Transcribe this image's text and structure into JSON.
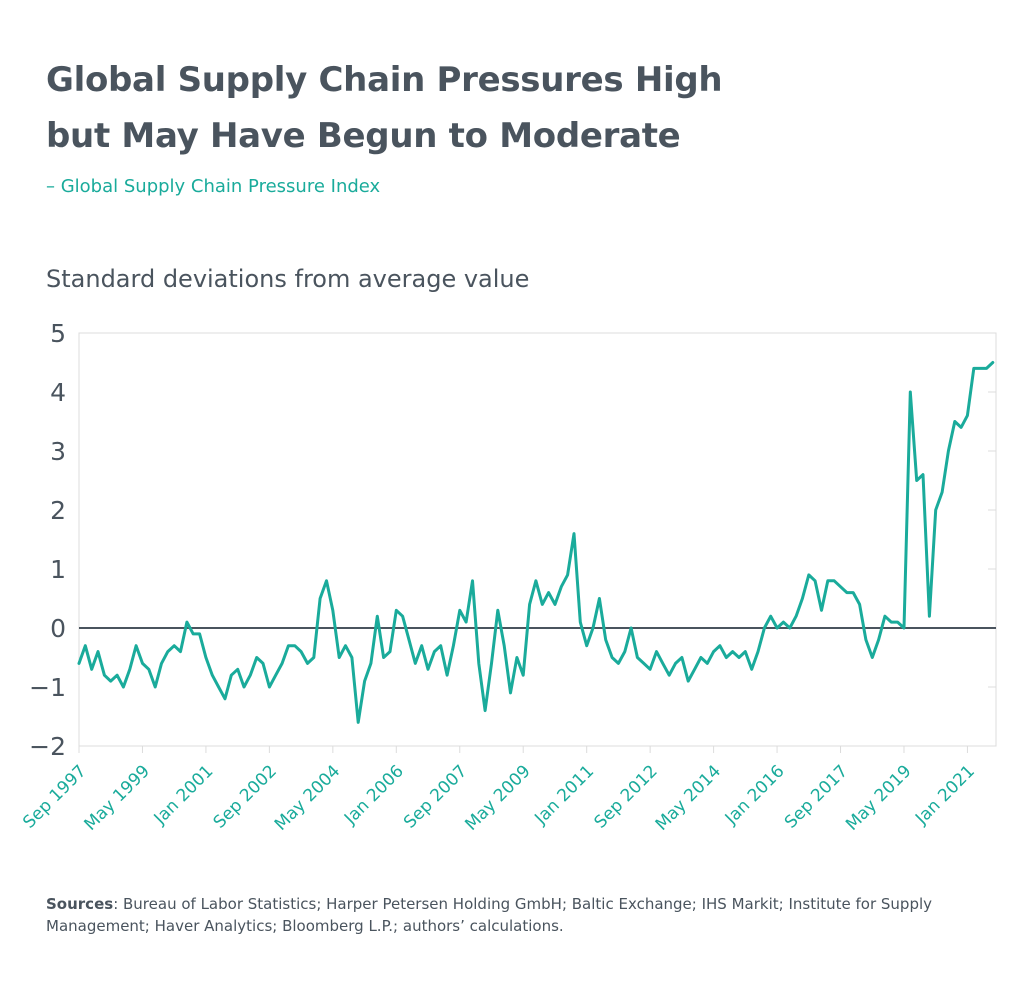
{
  "title_line1": "Global Supply Chain Pressures High",
  "title_line2": "but May Have Begun to Moderate",
  "legend_label": "– Global Supply Chain Pressure Index",
  "sources_label": "Sources",
  "sources_text": ": Bureau of Labor Statistics; Harper Petersen Holding GmbH; Baltic Exchange; IHS Markit; Institute for Supply Management; Haver Analytics; Bloomberg L.P.; authors’ calculations.",
  "colors": {
    "line": "#1aab9b",
    "text": "#4a545e",
    "frame": "#dcdcdc",
    "zero": "#4a545e"
  },
  "chart_data": {
    "type": "line",
    "title": "Global Supply Chain Pressures High but May Have Begun to Moderate",
    "ylabel": "Standard deviations from average value",
    "xlabel": "",
    "ylim": [
      -2,
      5
    ],
    "yticks": [
      5,
      4,
      3,
      2,
      1,
      0,
      -1,
      -2
    ],
    "ytick_labels": [
      "5",
      "4",
      "3",
      "2",
      "1",
      "0",
      "−1",
      "−2"
    ],
    "xlim": [
      "1997-09",
      "2021-10"
    ],
    "xticks": [
      "1997-09",
      "1999-05",
      "2001-01",
      "2002-09",
      "2004-05",
      "2006-01",
      "2007-09",
      "2009-05",
      "2011-01",
      "2012-09",
      "2014-05",
      "2016-01",
      "2017-09",
      "2019-05",
      "2021-01"
    ],
    "xtick_labels": [
      "Sep 1997",
      "May 1999",
      "Jan 2001",
      "Sep 2002",
      "May 2004",
      "Jan 2006",
      "Sep 2007",
      "May 2009",
      "Jan 2011",
      "Sep 2012",
      "May 2014",
      "Jan 2016",
      "Sep 2017",
      "May 2019",
      "Jan 2021"
    ],
    "zero_line": true,
    "series": [
      {
        "name": "Global Supply Chain Pressure Index",
        "points": [
          [
            "1997-09",
            -0.6
          ],
          [
            "1997-11",
            -0.3
          ],
          [
            "1998-01",
            -0.7
          ],
          [
            "1998-03",
            -0.4
          ],
          [
            "1998-05",
            -0.8
          ],
          [
            "1998-07",
            -0.9
          ],
          [
            "1998-09",
            -0.8
          ],
          [
            "1998-11",
            -1.0
          ],
          [
            "1999-01",
            -0.7
          ],
          [
            "1999-03",
            -0.3
          ],
          [
            "1999-05",
            -0.6
          ],
          [
            "1999-07",
            -0.7
          ],
          [
            "1999-09",
            -1.0
          ],
          [
            "1999-11",
            -0.6
          ],
          [
            "2000-01",
            -0.4
          ],
          [
            "2000-03",
            -0.3
          ],
          [
            "2000-05",
            -0.4
          ],
          [
            "2000-07",
            0.1
          ],
          [
            "2000-09",
            -0.1
          ],
          [
            "2000-11",
            -0.1
          ],
          [
            "2001-01",
            -0.5
          ],
          [
            "2001-03",
            -0.8
          ],
          [
            "2001-05",
            -1.0
          ],
          [
            "2001-07",
            -1.2
          ],
          [
            "2001-09",
            -0.8
          ],
          [
            "2001-11",
            -0.7
          ],
          [
            "2002-01",
            -1.0
          ],
          [
            "2002-03",
            -0.8
          ],
          [
            "2002-05",
            -0.5
          ],
          [
            "2002-07",
            -0.6
          ],
          [
            "2002-09",
            -1.0
          ],
          [
            "2002-11",
            -0.8
          ],
          [
            "2003-01",
            -0.6
          ],
          [
            "2003-03",
            -0.3
          ],
          [
            "2003-05",
            -0.3
          ],
          [
            "2003-07",
            -0.4
          ],
          [
            "2003-09",
            -0.6
          ],
          [
            "2003-11",
            -0.5
          ],
          [
            "2004-01",
            0.5
          ],
          [
            "2004-03",
            0.8
          ],
          [
            "2004-05",
            0.3
          ],
          [
            "2004-07",
            -0.5
          ],
          [
            "2004-09",
            -0.3
          ],
          [
            "2004-11",
            -0.5
          ],
          [
            "2005-01",
            -1.6
          ],
          [
            "2005-03",
            -0.9
          ],
          [
            "2005-05",
            -0.6
          ],
          [
            "2005-07",
            0.2
          ],
          [
            "2005-09",
            -0.5
          ],
          [
            "2005-11",
            -0.4
          ],
          [
            "2006-01",
            0.3
          ],
          [
            "2006-03",
            0.2
          ],
          [
            "2006-05",
            -0.2
          ],
          [
            "2006-07",
            -0.6
          ],
          [
            "2006-09",
            -0.3
          ],
          [
            "2006-11",
            -0.7
          ],
          [
            "2007-01",
            -0.4
          ],
          [
            "2007-03",
            -0.3
          ],
          [
            "2007-05",
            -0.8
          ],
          [
            "2007-07",
            -0.3
          ],
          [
            "2007-09",
            0.3
          ],
          [
            "2007-11",
            0.1
          ],
          [
            "2008-01",
            0.8
          ],
          [
            "2008-03",
            -0.6
          ],
          [
            "2008-05",
            -1.4
          ],
          [
            "2008-07",
            -0.6
          ],
          [
            "2008-09",
            0.3
          ],
          [
            "2008-11",
            -0.3
          ],
          [
            "2009-01",
            -1.1
          ],
          [
            "2009-03",
            -0.5
          ],
          [
            "2009-05",
            -0.8
          ],
          [
            "2009-07",
            0.4
          ],
          [
            "2009-09",
            0.8
          ],
          [
            "2009-11",
            0.4
          ],
          [
            "2010-01",
            0.6
          ],
          [
            "2010-03",
            0.4
          ],
          [
            "2010-05",
            0.7
          ],
          [
            "2010-07",
            0.9
          ],
          [
            "2010-09",
            1.6
          ],
          [
            "2010-11",
            0.1
          ],
          [
            "2011-01",
            -0.3
          ],
          [
            "2011-03",
            0.0
          ],
          [
            "2011-05",
            0.5
          ],
          [
            "2011-07",
            -0.2
          ],
          [
            "2011-09",
            -0.5
          ],
          [
            "2011-11",
            -0.6
          ],
          [
            "2012-01",
            -0.4
          ],
          [
            "2012-03",
            0.0
          ],
          [
            "2012-05",
            -0.5
          ],
          [
            "2012-07",
            -0.6
          ],
          [
            "2012-09",
            -0.7
          ],
          [
            "2012-11",
            -0.4
          ],
          [
            "2013-01",
            -0.6
          ],
          [
            "2013-03",
            -0.8
          ],
          [
            "2013-05",
            -0.6
          ],
          [
            "2013-07",
            -0.5
          ],
          [
            "2013-09",
            -0.9
          ],
          [
            "2013-11",
            -0.7
          ],
          [
            "2014-01",
            -0.5
          ],
          [
            "2014-03",
            -0.6
          ],
          [
            "2014-05",
            -0.4
          ],
          [
            "2014-07",
            -0.3
          ],
          [
            "2014-09",
            -0.5
          ],
          [
            "2014-11",
            -0.4
          ],
          [
            "2015-01",
            -0.5
          ],
          [
            "2015-03",
            -0.4
          ],
          [
            "2015-05",
            -0.7
          ],
          [
            "2015-07",
            -0.4
          ],
          [
            "2015-09",
            0.0
          ],
          [
            "2015-11",
            0.2
          ],
          [
            "2016-01",
            0.0
          ],
          [
            "2016-03",
            0.1
          ],
          [
            "2016-05",
            0.0
          ],
          [
            "2016-07",
            0.2
          ],
          [
            "2016-09",
            0.5
          ],
          [
            "2016-11",
            0.9
          ],
          [
            "2017-01",
            0.8
          ],
          [
            "2017-03",
            0.3
          ],
          [
            "2017-05",
            0.8
          ],
          [
            "2017-07",
            0.8
          ],
          [
            "2017-09",
            0.7
          ],
          [
            "2017-11",
            0.6
          ],
          [
            "2018-01",
            0.6
          ],
          [
            "2018-03",
            0.4
          ],
          [
            "2018-05",
            -0.2
          ],
          [
            "2018-07",
            -0.5
          ],
          [
            "2018-09",
            -0.2
          ],
          [
            "2018-11",
            0.2
          ],
          [
            "2019-01",
            0.1
          ],
          [
            "2019-03",
            0.1
          ],
          [
            "2019-05",
            0.0
          ],
          [
            "2019-07",
            4.0
          ],
          [
            "2019-09",
            2.5
          ],
          [
            "2019-11",
            2.6
          ],
          [
            "2020-01",
            0.2
          ],
          [
            "2020-03",
            2.0
          ],
          [
            "2020-05",
            2.3
          ],
          [
            "2020-07",
            3.0
          ],
          [
            "2020-09",
            3.5
          ],
          [
            "2020-11",
            3.4
          ],
          [
            "2021-01",
            3.6
          ],
          [
            "2021-03",
            4.4
          ],
          [
            "2021-05",
            4.4
          ],
          [
            "2021-07",
            4.4
          ],
          [
            "2021-09",
            4.5
          ]
        ]
      }
    ]
  }
}
